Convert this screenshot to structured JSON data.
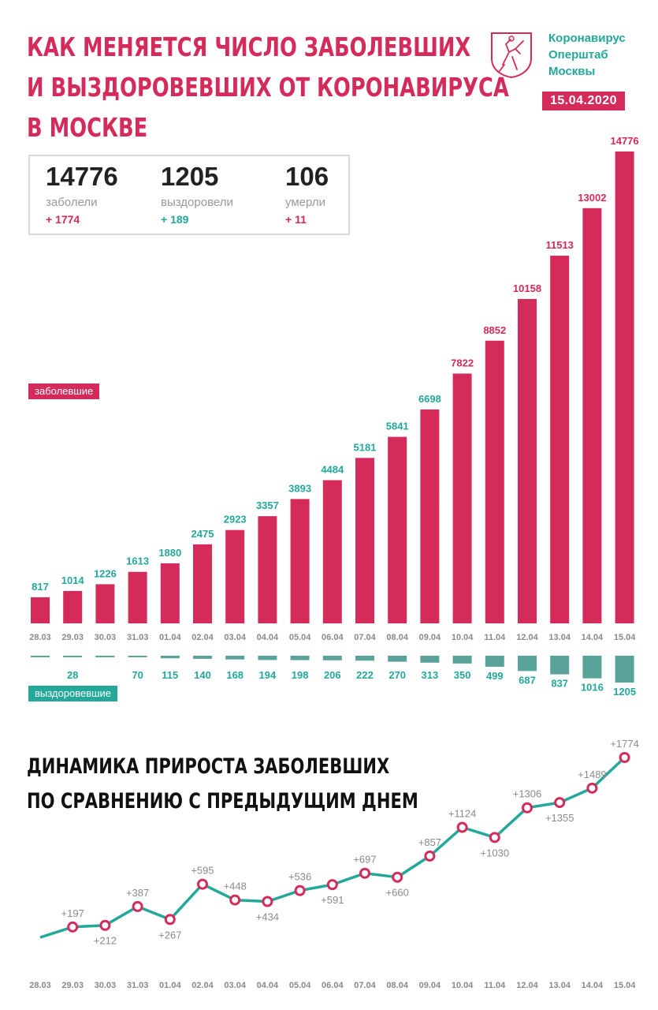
{
  "title": [
    "Как меняется число заболевших",
    "и выздоровевших от коронавируса",
    "в Москве"
  ],
  "brand": {
    "lines": [
      "Коронавирус",
      "Оперштаб",
      "Москвы"
    ],
    "emblem_icon": "moscow-coat-of-arms-icon"
  },
  "date": "15.04.2020",
  "stats": [
    {
      "value": "14776",
      "label": "заболели",
      "change": "+ 1774",
      "color": "pink"
    },
    {
      "value": "1205",
      "label": "выздоровели",
      "change": "+ 189",
      "color": "teal"
    },
    {
      "value": "106",
      "label": "умерли",
      "change": "+ 11",
      "color": "pink"
    }
  ],
  "legend_infected": "заболевшие",
  "legend_recovered": "выздоровевшие",
  "subtitle": [
    "Динамика прироста заболевших",
    "по сравнению с предыдущим днем"
  ],
  "colors": {
    "pink": "#d52b5a",
    "teal": "#24a89a",
    "gray": "#8a8a8a",
    "axis": "#dddddd"
  },
  "chart_data": [
    {
      "type": "bar",
      "categories": [
        "28.03",
        "29.03",
        "30.03",
        "31.03",
        "01.04",
        "02.04",
        "03.04",
        "04.04",
        "05.04",
        "06.04",
        "07.04",
        "08.04",
        "09.04",
        "10.04",
        "11.04",
        "12.04",
        "13.04",
        "14.04",
        "15.04"
      ],
      "series": [
        {
          "name": "заболевшие",
          "values": [
            817,
            1014,
            1226,
            1613,
            1880,
            2475,
            2923,
            3357,
            3893,
            4484,
            5181,
            5841,
            6698,
            7822,
            8852,
            10158,
            11513,
            13002,
            14776
          ]
        },
        {
          "name": "выздоровевшие",
          "values": [
            null,
            28,
            null,
            70,
            115,
            140,
            168,
            194,
            198,
            206,
            222,
            270,
            313,
            350,
            499,
            687,
            837,
            1016,
            1205
          ]
        }
      ],
      "recovered_bar_values": [
        5,
        28,
        15,
        70,
        115,
        140,
        168,
        194,
        198,
        206,
        222,
        270,
        313,
        350,
        499,
        687,
        837,
        1016,
        1205
      ]
    },
    {
      "type": "line",
      "categories": [
        "28.03",
        "29.03",
        "30.03",
        "31.03",
        "01.04",
        "02.04",
        "03.04",
        "04.04",
        "05.04",
        "06.04",
        "07.04",
        "08.04",
        "09.04",
        "10.04",
        "11.04",
        "12.04",
        "13.04",
        "14.04",
        "15.04"
      ],
      "series": [
        {
          "values": [
            null,
            197,
            212,
            387,
            267,
            595,
            448,
            434,
            536,
            591,
            697,
            660,
            857,
            1124,
            1030,
            1306,
            1355,
            1489,
            1774
          ]
        }
      ],
      "labels": [
        null,
        "+197",
        "+212",
        "+387",
        "+267",
        "+595",
        "+448",
        "+434",
        "+536",
        "+591",
        "+697",
        "+660",
        "+857",
        "+1124",
        "+1030",
        "+1306",
        "+1355",
        "+1489",
        "+1774"
      ],
      "start_value": 100
    }
  ]
}
